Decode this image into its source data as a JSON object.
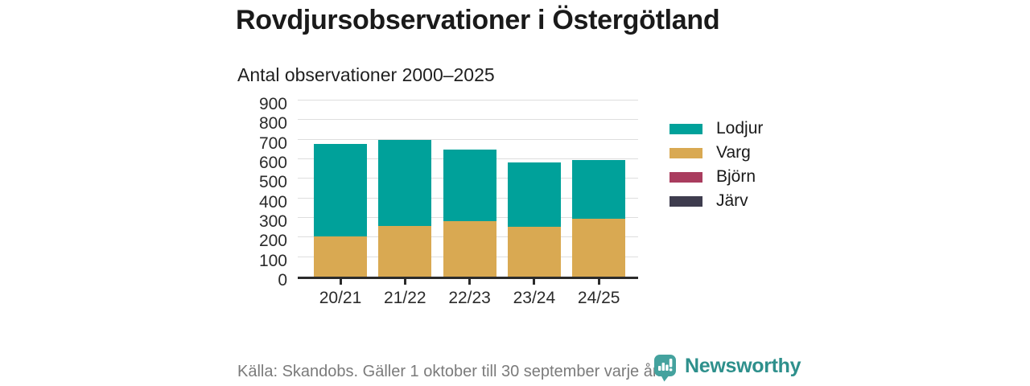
{
  "header": {
    "title": "Rovdjursobservationer i Östergötland",
    "subtitle": "Antal observationer 2000–2025"
  },
  "chart_data": {
    "type": "bar",
    "stacked": true,
    "title": "Rovdjursobservationer i Östergötland",
    "subtitle": "Antal observationer 2000–2025",
    "categories": [
      "20/21",
      "21/22",
      "22/23",
      "23/24",
      "24/25"
    ],
    "series": [
      {
        "name": "Lodjur",
        "color": "#00A19A",
        "values": [
          475,
          440,
          365,
          330,
          300
        ]
      },
      {
        "name": "Varg",
        "color": "#D9A952",
        "values": [
          205,
          260,
          285,
          255,
          295
        ]
      },
      {
        "name": "Björn",
        "color": "#A93C5E",
        "values": [
          0,
          0,
          0,
          0,
          0
        ]
      },
      {
        "name": "Järv",
        "color": "#3E3C4E",
        "values": [
          0,
          0,
          0,
          0,
          0
        ]
      }
    ],
    "stack_order_bottom_to_top": [
      "Järv",
      "Björn",
      "Varg",
      "Lodjur"
    ],
    "stack_totals": [
      680,
      700,
      650,
      585,
      595
    ],
    "xlabel": "",
    "ylabel": "",
    "ylim": [
      0,
      900
    ],
    "ytick_step": 100,
    "grid": true,
    "legend_position": "right"
  },
  "footer": {
    "source": "Källa: Skandobs. Gäller 1 oktober till 30 september varje år.",
    "brand": "Newsworthy",
    "brand_color": "#2E908C",
    "brand_icon_color": "#44A29E"
  }
}
